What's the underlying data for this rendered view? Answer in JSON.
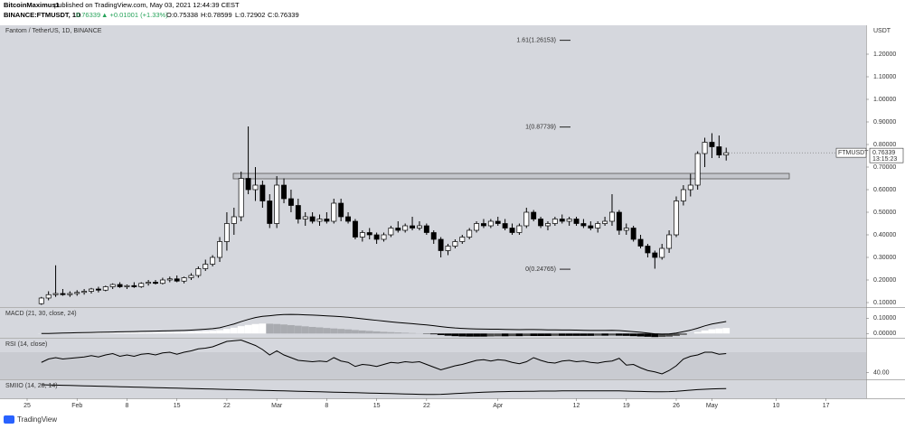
{
  "header": {
    "author": "BitcoinMaximus1",
    "published": "published on TradingView.com, May 03, 2021 12:44:39 CEST",
    "symbol": "BINANCE:FTMUSDT, 1D",
    "last": "0.76339",
    "change": "▲ +0.01001 (+1.33%)",
    "open": "O:0.75338",
    "high": "H:0.78599",
    "low": "L:0.72902",
    "close": "C:0.76339"
  },
  "chart_data": [
    {
      "type": "candlestick",
      "title": "Fantom / TetherUS, 1D, BINANCE",
      "unit": "USDT",
      "categories": [
        null,
        null,
        null,
        "25",
        null,
        null,
        null,
        null,
        null,
        null,
        "Feb",
        null,
        null,
        null,
        null,
        null,
        null,
        "8",
        null,
        null,
        null,
        null,
        null,
        null,
        "15",
        null,
        null,
        null,
        null,
        null,
        null,
        "22",
        null,
        null,
        null,
        null,
        null,
        null,
        "Mar",
        null,
        null,
        null,
        null,
        null,
        null,
        "8",
        null,
        null,
        null,
        null,
        null,
        null,
        "15",
        null,
        null,
        null,
        null,
        null,
        null,
        "22",
        null,
        null,
        null,
        null,
        null,
        null,
        null,
        null,
        null,
        "Apr",
        null,
        null,
        null,
        null,
        null,
        null,
        null,
        null,
        null,
        null,
        "12",
        null,
        null,
        null,
        null,
        null,
        null,
        "19",
        null,
        null,
        null,
        null,
        null,
        null,
        "26",
        null,
        null,
        null,
        null,
        "May",
        null,
        null,
        null,
        null,
        null,
        null,
        null,
        null,
        "10",
        null,
        null,
        null,
        null,
        null,
        null,
        "17",
        null,
        null,
        null,
        null,
        null,
        null
      ],
      "ohlc": [
        null,
        null,
        null,
        null,
        null,
        [
          0.095,
          0.125,
          0.09,
          0.12
        ],
        [
          0.12,
          0.15,
          0.11,
          0.135
        ],
        [
          0.135,
          0.265,
          0.125,
          0.14
        ],
        [
          0.14,
          0.16,
          0.13,
          0.135
        ],
        [
          0.135,
          0.15,
          0.125,
          0.14
        ],
        [
          0.14,
          0.155,
          0.13,
          0.145
        ],
        [
          0.145,
          0.16,
          0.135,
          0.15
        ],
        [
          0.15,
          0.165,
          0.14,
          0.16
        ],
        [
          0.16,
          0.17,
          0.145,
          0.155
        ],
        [
          0.155,
          0.175,
          0.15,
          0.17
        ],
        [
          0.17,
          0.185,
          0.16,
          0.18
        ],
        [
          0.18,
          0.19,
          0.165,
          0.17
        ],
        [
          0.17,
          0.18,
          0.16,
          0.175
        ],
        [
          0.175,
          0.19,
          0.165,
          0.17
        ],
        [
          0.17,
          0.19,
          0.165,
          0.185
        ],
        [
          0.185,
          0.2,
          0.175,
          0.19
        ],
        [
          0.19,
          0.2,
          0.18,
          0.185
        ],
        [
          0.185,
          0.21,
          0.18,
          0.2
        ],
        [
          0.2,
          0.215,
          0.19,
          0.205
        ],
        [
          0.205,
          0.22,
          0.19,
          0.195
        ],
        [
          0.195,
          0.215,
          0.185,
          0.21
        ],
        [
          0.21,
          0.23,
          0.2,
          0.22
        ],
        [
          0.22,
          0.26,
          0.21,
          0.25
        ],
        [
          0.25,
          0.29,
          0.24,
          0.27
        ],
        [
          0.27,
          0.31,
          0.26,
          0.3
        ],
        [
          0.3,
          0.39,
          0.28,
          0.37
        ],
        [
          0.37,
          0.5,
          0.33,
          0.45
        ],
        [
          0.45,
          0.52,
          0.4,
          0.48
        ],
        [
          0.48,
          0.68,
          0.46,
          0.65
        ],
        [
          0.65,
          0.88,
          0.58,
          0.6
        ],
        [
          0.6,
          0.7,
          0.55,
          0.62
        ],
        [
          0.62,
          0.64,
          0.52,
          0.55
        ],
        [
          0.55,
          0.58,
          0.43,
          0.45
        ],
        [
          0.45,
          0.66,
          0.43,
          0.62
        ],
        [
          0.62,
          0.65,
          0.54,
          0.56
        ],
        [
          0.56,
          0.6,
          0.5,
          0.53
        ],
        [
          0.53,
          0.56,
          0.45,
          0.47
        ],
        [
          0.47,
          0.5,
          0.44,
          0.48
        ],
        [
          0.48,
          0.5,
          0.45,
          0.46
        ],
        [
          0.46,
          0.49,
          0.44,
          0.47
        ],
        [
          0.47,
          0.5,
          0.45,
          0.46
        ],
        [
          0.46,
          0.56,
          0.45,
          0.54
        ],
        [
          0.54,
          0.56,
          0.46,
          0.48
        ],
        [
          0.48,
          0.5,
          0.45,
          0.46
        ],
        [
          0.46,
          0.47,
          0.38,
          0.39
        ],
        [
          0.39,
          0.42,
          0.37,
          0.41
        ],
        [
          0.41,
          0.43,
          0.38,
          0.4
        ],
        [
          0.4,
          0.41,
          0.36,
          0.38
        ],
        [
          0.38,
          0.41,
          0.37,
          0.4
        ],
        [
          0.4,
          0.44,
          0.39,
          0.43
        ],
        [
          0.43,
          0.46,
          0.41,
          0.42
        ],
        [
          0.42,
          0.45,
          0.41,
          0.44
        ],
        [
          0.44,
          0.48,
          0.42,
          0.43
        ],
        [
          0.43,
          0.46,
          0.42,
          0.44
        ],
        [
          0.44,
          0.45,
          0.4,
          0.41
        ],
        [
          0.41,
          0.42,
          0.36,
          0.38
        ],
        [
          0.38,
          0.39,
          0.3,
          0.33
        ],
        [
          0.33,
          0.36,
          0.31,
          0.35
        ],
        [
          0.35,
          0.38,
          0.34,
          0.37
        ],
        [
          0.37,
          0.4,
          0.36,
          0.39
        ],
        [
          0.39,
          0.43,
          0.38,
          0.42
        ],
        [
          0.42,
          0.46,
          0.41,
          0.45
        ],
        [
          0.45,
          0.47,
          0.43,
          0.44
        ],
        [
          0.44,
          0.47,
          0.43,
          0.46
        ],
        [
          0.46,
          0.48,
          0.44,
          0.45
        ],
        [
          0.45,
          0.47,
          0.42,
          0.43
        ],
        [
          0.43,
          0.45,
          0.4,
          0.41
        ],
        [
          0.41,
          0.45,
          0.4,
          0.44
        ],
        [
          0.44,
          0.52,
          0.43,
          0.5
        ],
        [
          0.5,
          0.51,
          0.46,
          0.47
        ],
        [
          0.47,
          0.48,
          0.43,
          0.44
        ],
        [
          0.44,
          0.46,
          0.42,
          0.45
        ],
        [
          0.45,
          0.48,
          0.44,
          0.47
        ],
        [
          0.47,
          0.49,
          0.45,
          0.46
        ],
        [
          0.46,
          0.48,
          0.44,
          0.47
        ],
        [
          0.47,
          0.48,
          0.44,
          0.45
        ],
        [
          0.45,
          0.47,
          0.43,
          0.44
        ],
        [
          0.44,
          0.46,
          0.42,
          0.43
        ],
        [
          0.43,
          0.46,
          0.41,
          0.45
        ],
        [
          0.45,
          0.48,
          0.44,
          0.46
        ],
        [
          0.46,
          0.58,
          0.44,
          0.5
        ],
        [
          0.5,
          0.51,
          0.4,
          0.42
        ],
        [
          0.42,
          0.45,
          0.4,
          0.43
        ],
        [
          0.43,
          0.44,
          0.37,
          0.38
        ],
        [
          0.38,
          0.4,
          0.34,
          0.35
        ],
        [
          0.35,
          0.36,
          0.3,
          0.32
        ],
        [
          0.32,
          0.33,
          0.25,
          0.3
        ],
        [
          0.3,
          0.36,
          0.29,
          0.34
        ],
        [
          0.34,
          0.42,
          0.32,
          0.4
        ],
        [
          0.4,
          0.57,
          0.39,
          0.55
        ],
        [
          0.55,
          0.62,
          0.53,
          0.6
        ],
        [
          0.6,
          0.67,
          0.57,
          0.62
        ],
        [
          0.62,
          0.77,
          0.6,
          0.76
        ],
        [
          0.76,
          0.83,
          0.7,
          0.81
        ],
        [
          0.81,
          0.85,
          0.74,
          0.79
        ],
        [
          0.79,
          0.84,
          0.74,
          0.75338
        ],
        [
          0.75338,
          0.78599,
          0.72902,
          0.76339
        ],
        null,
        null,
        null,
        null,
        null,
        null,
        null,
        null,
        null,
        null,
        null,
        null,
        null,
        null,
        null,
        null,
        null,
        null,
        null,
        null
      ],
      "up_color": "#ffffff",
      "down_color": "#000000",
      "ylim": [
        0.08,
        1.328
      ],
      "yticks": [
        {
          "value": 1.2,
          "label": "1.20000"
        },
        {
          "value": 1.1,
          "label": "1.10000"
        },
        {
          "value": 1,
          "label": "1.00000"
        },
        {
          "value": 0.9,
          "label": "0.90000"
        },
        {
          "value": 0.8,
          "label": "0.80000"
        },
        {
          "value": 0.7,
          "label": "0.70000"
        },
        {
          "value": 0.6,
          "label": "0.60000"
        },
        {
          "value": 0.5,
          "label": "0.50000"
        },
        {
          "value": 0.4,
          "label": "0.40000"
        },
        {
          "value": 0.3,
          "label": "0.30000"
        },
        {
          "value": 0.2,
          "label": "0.20000"
        },
        {
          "value": 0.1,
          "label": "0.10000"
        }
      ],
      "annotations": [
        {
          "label": "1.61(1.26153)",
          "value": 1.26153
        },
        {
          "label": "1(0.87739)",
          "value": 0.87739
        },
        {
          "label": "0(0.24765)",
          "value": 0.24765
        }
      ],
      "zone": [
        0.648,
        0.672
      ],
      "last_price": {
        "symbol": "FTMUSDT",
        "value": 0.76339,
        "countdown": "13:15:23"
      }
    },
    {
      "type": "macd",
      "title": "MACD (21, 30, close, 24)",
      "color": "#000000",
      "values": [
        null,
        null,
        null,
        null,
        null,
        0,
        0,
        0.002,
        0.003,
        0.004,
        0.005,
        0.006,
        0.007,
        0.008,
        0.009,
        0.01,
        0.011,
        0.012,
        0.013,
        0.014,
        0.015,
        0.016,
        0.017,
        0.018,
        0.019,
        0.02,
        0.022,
        0.025,
        0.028,
        0.032,
        0.038,
        0.05,
        0.062,
        0.078,
        0.092,
        0.104,
        0.112,
        0.116,
        0.121,
        0.124,
        0.125,
        0.124,
        0.122,
        0.12,
        0.118,
        0.115,
        0.113,
        0.11,
        0.106,
        0.101,
        0.096,
        0.091,
        0.086,
        0.081,
        0.076,
        0.072,
        0.068,
        0.064,
        0.06,
        0.056,
        0.051,
        0.045,
        0.04,
        0.036,
        0.033,
        0.031,
        0.03,
        0.029,
        0.028,
        0.028,
        0.027,
        0.026,
        0.025,
        0.026,
        0.026,
        0.025,
        0.024,
        0.024,
        0.023,
        0.023,
        0.022,
        0.021,
        0.02,
        0.02,
        0.02,
        0.021,
        0.019,
        0.016,
        0.012,
        0.008,
        0.003,
        -0.002,
        -0.004,
        -0.003,
        0.003,
        0.012,
        0.022,
        0.035,
        0.05,
        0.062,
        0.07,
        0.078,
        null,
        null,
        null,
        null,
        null,
        null,
        null,
        null,
        null,
        null,
        null,
        null,
        null,
        null,
        null,
        null,
        null,
        null,
        null,
        null
      ],
      "histogram": [
        null,
        null,
        null,
        null,
        null,
        0.001,
        0.001,
        0.002,
        0.002,
        0.003,
        0.003,
        0.004,
        0.004,
        0.005,
        0.005,
        0.006,
        0.006,
        0.007,
        0.007,
        0.008,
        0.008,
        0.009,
        0.009,
        0.01,
        0.01,
        0.011,
        0.012,
        0.014,
        0.016,
        0.018,
        0.022,
        0.03,
        0.038,
        0.048,
        0.056,
        0.062,
        0.065,
        0.064,
        0.062,
        0.059,
        0.055,
        0.051,
        0.047,
        0.043,
        0.04,
        0.036,
        0.033,
        0.03,
        0.027,
        0.023,
        0.02,
        0.017,
        0.014,
        0.011,
        0.009,
        0.007,
        0.005,
        0.003,
        0.001,
        -0.002,
        -0.005,
        -0.01,
        -0.014,
        -0.017,
        -0.019,
        -0.02,
        -0.02,
        -0.02,
        -0.019,
        -0.018,
        -0.018,
        -0.017,
        -0.017,
        -0.016,
        -0.016,
        -0.016,
        -0.016,
        -0.015,
        -0.015,
        -0.015,
        -0.015,
        -0.015,
        -0.015,
        -0.014,
        -0.014,
        -0.013,
        -0.014,
        -0.015,
        -0.017,
        -0.019,
        -0.021,
        -0.023,
        -0.022,
        -0.02,
        -0.015,
        -0.008,
        0,
        0.01,
        0.02,
        0.028,
        0.033,
        0.036,
        null,
        null,
        null,
        null,
        null,
        null,
        null,
        null,
        null,
        null,
        null,
        null,
        null,
        null,
        null,
        null,
        null,
        null,
        null,
        null
      ],
      "ylim": [
        -0.0278,
        0.1667
      ],
      "yticks": [
        {
          "value": 0.1,
          "label": "0.10000"
        },
        {
          "value": 0,
          "label": "0.00000"
        }
      ]
    },
    {
      "type": "line",
      "title": "RSI (14, close)",
      "color": "#000000",
      "values": [
        null,
        null,
        null,
        null,
        null,
        55,
        60,
        62,
        60,
        61,
        62,
        63,
        65,
        63,
        66,
        68,
        64,
        66,
        64,
        67,
        68,
        66,
        69,
        70,
        67,
        70,
        72,
        75,
        76,
        78,
        82,
        86,
        87,
        88,
        84,
        80,
        74,
        66,
        72,
        66,
        62,
        58,
        57,
        56,
        57,
        56,
        62,
        57,
        55,
        49,
        52,
        51,
        49,
        52,
        55,
        54,
        56,
        55,
        56,
        52,
        48,
        44,
        47,
        50,
        52,
        55,
        58,
        59,
        57,
        59,
        58,
        55,
        53,
        56,
        62,
        58,
        55,
        54,
        57,
        58,
        56,
        57,
        55,
        54,
        56,
        57,
        61,
        51,
        52,
        47,
        43,
        41,
        38,
        43,
        50,
        60,
        64,
        66,
        70,
        70,
        67,
        68,
        null,
        null,
        null,
        null,
        null,
        null,
        null,
        null,
        null,
        null,
        null,
        null,
        null,
        null,
        null,
        null,
        null,
        null,
        null,
        null
      ],
      "band": [
        30,
        70
      ],
      "ylim": [
        30,
        90
      ],
      "yticks": [
        {
          "value": 40,
          "label": "40.00"
        }
      ]
    },
    {
      "type": "line",
      "title": "SMIIO (14, 28, 14)",
      "color": "#000000",
      "values": [
        null,
        null,
        null,
        null,
        null,
        75,
        74,
        73,
        72,
        71,
        70,
        69,
        68,
        67,
        66,
        65,
        64,
        63,
        62,
        61,
        60,
        59,
        58,
        57,
        56,
        55,
        54,
        53,
        52,
        51,
        50,
        49,
        48,
        47,
        46,
        45,
        44,
        43,
        42,
        41,
        40,
        39,
        38,
        37,
        36,
        35,
        34,
        33,
        32,
        31,
        30,
        29,
        28,
        27,
        26,
        25,
        24,
        23,
        22,
        21,
        21,
        22,
        24,
        26,
        28,
        30,
        32,
        34,
        35,
        36,
        37,
        38,
        38,
        39,
        39,
        40,
        40,
        40,
        41,
        41,
        41,
        41,
        41,
        41,
        41,
        41,
        41,
        40,
        39,
        38,
        37,
        36,
        36,
        37,
        39,
        42,
        45,
        48,
        50,
        52,
        53,
        54,
        null,
        null,
        null,
        null,
        null,
        null,
        null,
        null,
        null,
        null,
        null,
        null,
        null,
        null,
        null,
        null,
        null,
        null,
        null,
        null
      ],
      "ylim": [
        0,
        100
      ],
      "yticks": []
    }
  ],
  "footer": {
    "brand": "TradingView"
  }
}
